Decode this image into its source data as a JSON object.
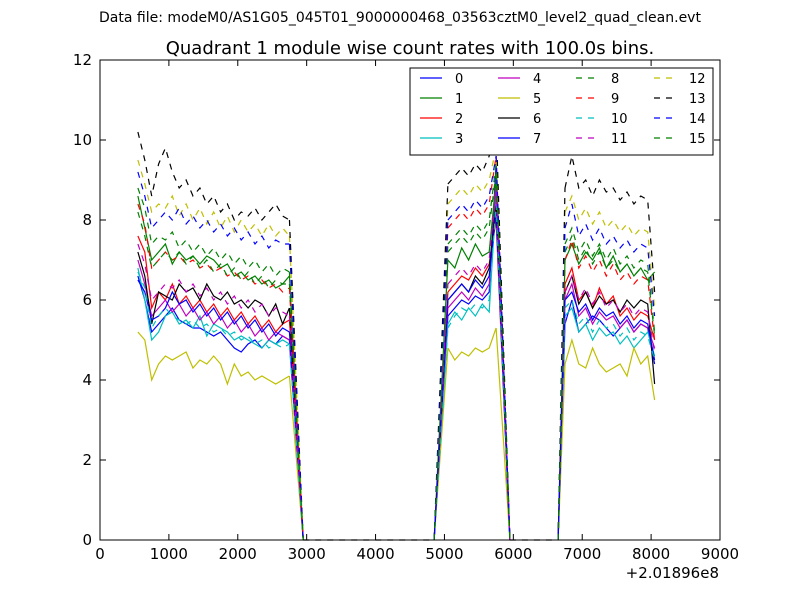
{
  "supertitle": "Data file: modeM0/AS1G05_045T01_9000000468_03563cztM0_level2_quad_clean.evt",
  "chart_data": {
    "type": "line",
    "title": "Quadrant 1 module wise count rates with 100.0s bins.",
    "xlabel": "",
    "ylabel": "",
    "xlim": [
      0,
      9000
    ],
    "ylim": [
      0,
      12
    ],
    "x_offset_label": "+2.01896e8",
    "x_ticks": [
      0,
      1000,
      2000,
      3000,
      4000,
      5000,
      6000,
      7000,
      8000,
      9000
    ],
    "y_ticks": [
      0,
      2,
      4,
      6,
      8,
      10,
      12
    ],
    "x_tick_labels": [
      "0",
      "1000",
      "2000",
      "3000",
      "4000",
      "5000",
      "6000",
      "7000",
      "8000",
      "9000"
    ],
    "y_tick_labels": [
      "0",
      "2",
      "4",
      "6",
      "8",
      "10",
      "12"
    ],
    "grid": false,
    "legend": {
      "location": "upper right",
      "columns": 4
    },
    "segment_x": {
      "A": [
        550,
        650,
        750,
        850,
        950,
        1050,
        1150,
        1250,
        1350,
        1450,
        1550,
        1650,
        1750,
        1850,
        1950,
        2050,
        2150,
        2250,
        2350,
        2450,
        2550,
        2650,
        2750
      ],
      "B": [
        5050,
        5150,
        5250,
        5350,
        5450,
        5550,
        5650,
        5750
      ],
      "C": [
        6750,
        6850,
        6950,
        7050,
        7150,
        7250,
        7350,
        7450,
        7550,
        7650,
        7750,
        7850,
        7950,
        8050
      ]
    },
    "zero_segments": [
      {
        "x": [
          2950,
          3050,
          4850
        ],
        "y": [
          0,
          0,
          0
        ]
      },
      {
        "x": [
          5950,
          6050,
          6650
        ],
        "y": [
          0,
          0,
          0
        ]
      }
    ],
    "series": [
      {
        "name": "0",
        "color": "#0000ff",
        "dash": "solid",
        "A": [
          6.6,
          6.0,
          5.2,
          5.4,
          5.6,
          5.8,
          5.5,
          5.4,
          5.3,
          5.3,
          5.2,
          5.1,
          5.2,
          5.0,
          4.8,
          4.7,
          4.9,
          5.0,
          4.8,
          5.0,
          4.9,
          5.1,
          5.0
        ],
        "B": [
          5.6,
          5.8,
          6.0,
          5.9,
          6.1,
          6.0,
          6.2,
          9.4
        ],
        "C": [
          5.4,
          6.0,
          5.2,
          5.4,
          5.6,
          5.5,
          5.3,
          5.1,
          5.3,
          5.5,
          5.2,
          5.4,
          5.3,
          4.4
        ]
      },
      {
        "name": "1",
        "color": "#008000",
        "dash": "solid",
        "A": [
          8.6,
          7.8,
          7.0,
          7.2,
          7.4,
          6.9,
          7.2,
          7.0,
          7.1,
          6.9,
          7.1,
          7.0,
          6.8,
          6.9,
          6.6,
          6.7,
          6.5,
          6.6,
          6.4,
          6.5,
          6.3,
          6.4,
          6.6
        ],
        "B": [
          7.0,
          6.8,
          7.3,
          7.0,
          7.4,
          7.1,
          7.2,
          9.0
        ],
        "C": [
          7.0,
          7.4,
          6.9,
          7.2,
          7.0,
          7.3,
          6.8,
          7.1,
          6.7,
          6.9,
          6.6,
          6.8,
          6.5,
          6.7
        ]
      },
      {
        "name": "2",
        "color": "#ff0000",
        "dash": "solid",
        "A": [
          7.6,
          7.2,
          5.8,
          6.2,
          6.0,
          6.4,
          5.9,
          6.1,
          5.8,
          6.0,
          5.7,
          5.9,
          5.6,
          5.8,
          5.5,
          5.7,
          5.4,
          5.6,
          5.3,
          5.5,
          5.2,
          5.4,
          5.5
        ],
        "B": [
          6.2,
          6.4,
          6.6,
          6.5,
          6.8,
          6.6,
          6.9,
          8.0
        ],
        "C": [
          6.4,
          6.8,
          6.0,
          6.2,
          5.8,
          6.3,
          5.9,
          6.1,
          5.6,
          5.8,
          5.5,
          5.7,
          5.6,
          5.0
        ]
      },
      {
        "name": "3",
        "color": "#00bfbf",
        "dash": "solid",
        "A": [
          6.8,
          6.0,
          5.0,
          5.2,
          5.6,
          5.7,
          5.4,
          5.5,
          5.3,
          5.6,
          5.1,
          5.4,
          5.3,
          5.2,
          5.0,
          5.1,
          5.0,
          4.9,
          4.8,
          5.0,
          4.9,
          5.0,
          4.9
        ],
        "B": [
          5.4,
          5.7,
          5.5,
          5.8,
          5.6,
          5.9,
          5.7,
          8.6
        ],
        "C": [
          5.6,
          5.8,
          5.2,
          5.4,
          5.0,
          5.3,
          5.1,
          5.2,
          4.9,
          5.1,
          4.8,
          5.0,
          5.2,
          4.6
        ]
      },
      {
        "name": "4",
        "color": "#bf00bf",
        "dash": "solid",
        "A": [
          7.0,
          6.4,
          5.6,
          5.8,
          6.0,
          5.7,
          5.9,
          5.6,
          5.8,
          5.5,
          5.7,
          5.4,
          5.6,
          5.3,
          5.5,
          5.2,
          5.4,
          5.1,
          5.3,
          5.0,
          5.2,
          5.1,
          5.0
        ],
        "B": [
          5.8,
          6.0,
          6.2,
          6.0,
          6.3,
          6.1,
          6.4,
          8.8
        ],
        "C": [
          6.0,
          6.4,
          5.6,
          5.8,
          5.4,
          5.7,
          5.5,
          5.6,
          5.3,
          5.5,
          5.2,
          5.4,
          5.3,
          4.8
        ]
      },
      {
        "name": "5",
        "color": "#bfbf00",
        "dash": "solid",
        "A": [
          5.2,
          5.0,
          4.0,
          4.4,
          4.6,
          4.5,
          4.6,
          4.7,
          4.3,
          4.5,
          4.4,
          4.6,
          4.4,
          3.9,
          4.4,
          4.1,
          4.2,
          4.0,
          4.1,
          4.0,
          3.9,
          4.0,
          4.1
        ],
        "B": [
          4.8,
          4.5,
          4.7,
          4.6,
          4.8,
          4.7,
          4.8,
          5.3
        ],
        "C": [
          4.4,
          5.0,
          4.4,
          4.3,
          4.8,
          4.4,
          4.2,
          4.3,
          4.4,
          4.1,
          4.8,
          4.4,
          4.6,
          3.5
        ]
      },
      {
        "name": "6",
        "color": "#000000",
        "dash": "solid",
        "A": [
          7.2,
          6.6,
          5.4,
          6.2,
          6.1,
          6.0,
          6.4,
          6.2,
          6.3,
          6.0,
          6.4,
          6.1,
          6.0,
          6.2,
          5.9,
          6.0,
          5.8,
          6.0,
          5.9,
          5.6,
          5.9,
          5.4,
          5.8
        ],
        "B": [
          6.0,
          6.2,
          6.4,
          6.2,
          6.6,
          6.4,
          6.8,
          8.4
        ],
        "C": [
          6.2,
          6.6,
          5.9,
          6.2,
          5.8,
          6.1,
          5.9,
          6.0,
          5.7,
          6.0,
          5.8,
          6.0,
          5.9,
          3.9
        ]
      },
      {
        "name": "7",
        "color": "#0000ff",
        "dash": "solid",
        "A": [
          6.5,
          6.2,
          5.5,
          5.6,
          5.8,
          6.2,
          5.9,
          6.0,
          5.7,
          5.9,
          5.6,
          5.8,
          5.5,
          5.7,
          5.4,
          5.6,
          5.3,
          5.5,
          5.2,
          5.4,
          5.1,
          5.3,
          5.2
        ],
        "B": [
          6.0,
          6.2,
          6.4,
          6.2,
          6.5,
          6.3,
          6.6,
          8.2
        ],
        "C": [
          6.0,
          6.2,
          5.7,
          5.9,
          5.5,
          5.8,
          5.6,
          5.7,
          5.4,
          5.6,
          5.3,
          5.5,
          5.4,
          4.5
        ]
      },
      {
        "name": "8",
        "color": "#008000",
        "dash": "dashed",
        "A": [
          8.8,
          8.3,
          7.4,
          7.6,
          7.5,
          7.7,
          7.3,
          7.5,
          7.2,
          7.4,
          7.1,
          7.3,
          7.0,
          7.2,
          6.9,
          7.1,
          6.8,
          7.0,
          6.7,
          6.9,
          6.6,
          6.8,
          6.7
        ],
        "B": [
          7.4,
          7.6,
          7.8,
          7.6,
          7.9,
          7.7,
          8.0,
          9.4
        ],
        "C": [
          7.4,
          7.8,
          7.2,
          7.5,
          7.1,
          7.4,
          7.0,
          7.3,
          6.9,
          7.1,
          6.8,
          7.0,
          6.9,
          5.2
        ]
      },
      {
        "name": "9",
        "color": "#ff0000",
        "dash": "dashed",
        "A": [
          8.4,
          7.9,
          6.8,
          7.0,
          7.2,
          7.0,
          7.1,
          6.9,
          7.0,
          6.8,
          6.9,
          6.7,
          6.8,
          6.6,
          6.7,
          6.5,
          6.6,
          6.4,
          6.5,
          6.3,
          6.4,
          6.2,
          6.3
        ],
        "B": [
          7.8,
          8.0,
          8.2,
          8.0,
          8.3,
          8.1,
          8.4,
          9.6
        ],
        "C": [
          7.0,
          7.5,
          6.8,
          7.1,
          6.7,
          7.0,
          6.6,
          6.9,
          6.5,
          6.7,
          6.4,
          6.6,
          6.5,
          5.0
        ]
      },
      {
        "name": "10",
        "color": "#00bfbf",
        "dash": "dashed",
        "A": [
          6.7,
          6.3,
          5.3,
          5.6,
          5.8,
          5.6,
          5.5,
          5.4,
          5.5,
          5.3,
          5.4,
          5.2,
          5.3,
          5.1,
          5.2,
          5.0,
          5.1,
          4.9,
          5.0,
          4.8,
          4.9,
          4.8,
          4.9
        ],
        "B": [
          5.3,
          5.6,
          5.8,
          5.7,
          5.9,
          5.8,
          6.0,
          8.4
        ],
        "C": [
          5.8,
          6.0,
          5.4,
          5.6,
          5.2,
          5.5,
          5.3,
          5.4,
          5.1,
          5.3,
          5.0,
          5.2,
          5.1,
          4.5
        ]
      },
      {
        "name": "11",
        "color": "#bf00bf",
        "dash": "dashed",
        "A": [
          7.4,
          6.9,
          6.0,
          6.2,
          6.4,
          6.3,
          6.5,
          6.2,
          6.4,
          6.1,
          6.3,
          6.0,
          6.2,
          5.9,
          6.1,
          5.8,
          6.0,
          5.7,
          5.9,
          5.6,
          5.8,
          5.7,
          5.6
        ],
        "B": [
          6.4,
          6.6,
          6.8,
          6.6,
          6.9,
          6.7,
          7.0,
          8.8
        ],
        "C": [
          6.2,
          6.6,
          6.0,
          6.3,
          5.9,
          6.2,
          5.8,
          6.0,
          5.7,
          5.9,
          5.6,
          5.8,
          5.7,
          4.7
        ]
      },
      {
        "name": "12",
        "color": "#bfbf00",
        "dash": "dashed",
        "A": [
          9.5,
          8.9,
          8.2,
          8.4,
          8.3,
          8.6,
          8.1,
          8.4,
          8.0,
          8.3,
          7.9,
          8.2,
          7.8,
          8.1,
          7.7,
          8.0,
          7.7,
          7.9,
          7.6,
          7.9,
          7.6,
          7.8,
          7.6
        ],
        "B": [
          8.4,
          8.6,
          8.8,
          8.6,
          8.9,
          8.7,
          9.0,
          9.8
        ],
        "C": [
          8.2,
          8.6,
          8.0,
          8.3,
          7.9,
          8.2,
          7.8,
          8.0,
          7.7,
          7.9,
          7.6,
          7.8,
          7.7,
          5.8
        ]
      },
      {
        "name": "13",
        "color": "#000000",
        "dash": "dashed",
        "A": [
          10.2,
          9.5,
          8.6,
          9.4,
          9.8,
          9.2,
          8.8,
          9.0,
          8.6,
          8.8,
          8.4,
          8.6,
          8.2,
          8.4,
          8.0,
          8.2,
          8.1,
          8.3,
          8.0,
          8.2,
          8.4,
          8.1,
          8.0
        ],
        "B": [
          8.9,
          9.1,
          9.3,
          9.1,
          9.4,
          9.2,
          9.6,
          10.4
        ],
        "C": [
          8.8,
          9.6,
          8.8,
          9.0,
          8.6,
          9.0,
          8.7,
          8.8,
          8.5,
          8.7,
          8.4,
          8.6,
          8.5,
          6.2
        ]
      },
      {
        "name": "14",
        "color": "#0000ff",
        "dash": "dashed",
        "A": [
          9.2,
          8.6,
          7.8,
          8.0,
          8.2,
          8.0,
          8.3,
          7.9,
          8.1,
          7.8,
          8.0,
          7.7,
          7.9,
          7.6,
          7.8,
          7.5,
          7.7,
          7.4,
          7.6,
          7.3,
          7.5,
          7.4,
          7.4
        ],
        "B": [
          8.0,
          8.2,
          8.4,
          8.2,
          8.5,
          8.3,
          8.6,
          9.6
        ],
        "C": [
          7.8,
          8.4,
          7.6,
          7.9,
          7.5,
          7.8,
          7.4,
          7.6,
          7.3,
          7.5,
          7.2,
          7.4,
          7.3,
          5.6
        ]
      },
      {
        "name": "15",
        "color": "#008000",
        "dash": "dashed",
        "A": [
          8.2,
          7.6,
          6.8,
          7.0,
          7.2,
          7.0,
          7.2,
          6.9,
          7.1,
          6.8,
          7.0,
          6.7,
          6.9,
          6.6,
          6.8,
          6.5,
          6.7,
          6.4,
          6.6,
          6.3,
          6.5,
          6.4,
          6.4
        ],
        "B": [
          7.2,
          7.4,
          7.6,
          7.4,
          7.7,
          7.5,
          7.8,
          9.2
        ],
        "C": [
          7.2,
          7.6,
          7.0,
          7.3,
          6.9,
          7.2,
          6.8,
          7.0,
          6.7,
          6.9,
          6.6,
          6.8,
          6.7,
          5.1
        ]
      }
    ]
  }
}
